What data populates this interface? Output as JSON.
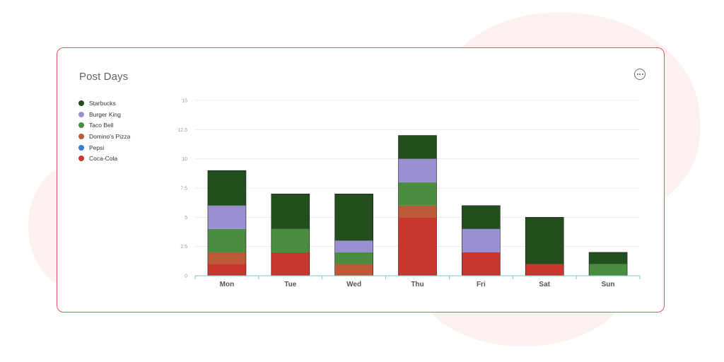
{
  "card": {
    "title": "Post Days",
    "more_icon": "more-horizontal-icon"
  },
  "chart_data": {
    "type": "bar",
    "stacked": true,
    "categories": [
      "Mon",
      "Tue",
      "Wed",
      "Thu",
      "Fri",
      "Sat",
      "Sun"
    ],
    "ylim": [
      0,
      15
    ],
    "yticks": [
      "0",
      "2.5",
      "5",
      "7.5",
      "10",
      "12.5",
      "15"
    ],
    "grid": true,
    "legend_position": "left",
    "series": [
      {
        "name": "Starbucks",
        "color": "#234f1e",
        "values": [
          3,
          3,
          4,
          2,
          2,
          4,
          1
        ]
      },
      {
        "name": "Burger King",
        "color": "#9b8fd3",
        "values": [
          2,
          0,
          1,
          2,
          2,
          0,
          0
        ]
      },
      {
        "name": "Taco Bell",
        "color": "#4a8c40",
        "values": [
          2,
          2,
          1,
          2,
          0,
          0,
          1
        ]
      },
      {
        "name": "Domino's Pizza",
        "color": "#bc5a38",
        "values": [
          1,
          0,
          1,
          1,
          0,
          0,
          0
        ]
      },
      {
        "name": "Pepsi",
        "color": "#3a7bd5",
        "values": [
          0,
          0,
          0,
          0,
          0,
          0,
          0
        ]
      },
      {
        "name": "Coca-Cola",
        "color": "#c8372d",
        "values": [
          1,
          2,
          0,
          5,
          2,
          1,
          0
        ]
      }
    ]
  }
}
